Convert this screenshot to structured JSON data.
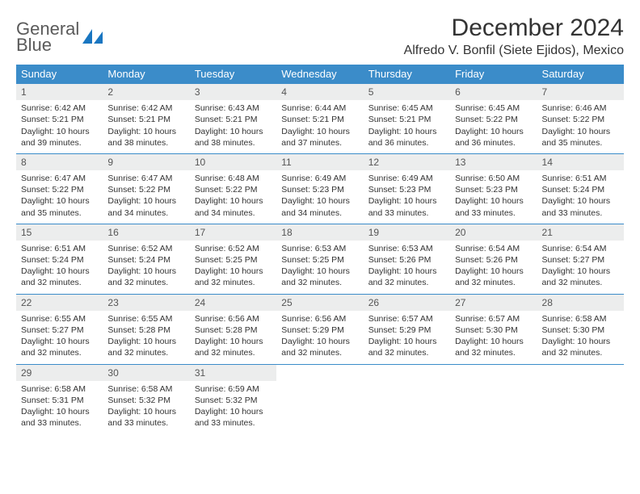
{
  "brand": {
    "name_line1": "General",
    "name_line2": "Blue",
    "accent_color": "#1976c1",
    "text_color": "#5a5a5a"
  },
  "title": "December 2024",
  "location": "Alfredo V. Bonfil (Siete Ejidos), Mexico",
  "colors": {
    "header_bg": "#3b8cc9",
    "header_text": "#ffffff",
    "daynum_bg": "#eceded",
    "row_border": "#3b8cc9",
    "body_text": "#333333",
    "page_bg": "#ffffff"
  },
  "day_names": [
    "Sunday",
    "Monday",
    "Tuesday",
    "Wednesday",
    "Thursday",
    "Friday",
    "Saturday"
  ],
  "weeks": [
    [
      {
        "n": "1",
        "sunrise": "6:42 AM",
        "sunset": "5:21 PM",
        "daylight": "10 hours and 39 minutes."
      },
      {
        "n": "2",
        "sunrise": "6:42 AM",
        "sunset": "5:21 PM",
        "daylight": "10 hours and 38 minutes."
      },
      {
        "n": "3",
        "sunrise": "6:43 AM",
        "sunset": "5:21 PM",
        "daylight": "10 hours and 38 minutes."
      },
      {
        "n": "4",
        "sunrise": "6:44 AM",
        "sunset": "5:21 PM",
        "daylight": "10 hours and 37 minutes."
      },
      {
        "n": "5",
        "sunrise": "6:45 AM",
        "sunset": "5:21 PM",
        "daylight": "10 hours and 36 minutes."
      },
      {
        "n": "6",
        "sunrise": "6:45 AM",
        "sunset": "5:22 PM",
        "daylight": "10 hours and 36 minutes."
      },
      {
        "n": "7",
        "sunrise": "6:46 AM",
        "sunset": "5:22 PM",
        "daylight": "10 hours and 35 minutes."
      }
    ],
    [
      {
        "n": "8",
        "sunrise": "6:47 AM",
        "sunset": "5:22 PM",
        "daylight": "10 hours and 35 minutes."
      },
      {
        "n": "9",
        "sunrise": "6:47 AM",
        "sunset": "5:22 PM",
        "daylight": "10 hours and 34 minutes."
      },
      {
        "n": "10",
        "sunrise": "6:48 AM",
        "sunset": "5:22 PM",
        "daylight": "10 hours and 34 minutes."
      },
      {
        "n": "11",
        "sunrise": "6:49 AM",
        "sunset": "5:23 PM",
        "daylight": "10 hours and 34 minutes."
      },
      {
        "n": "12",
        "sunrise": "6:49 AM",
        "sunset": "5:23 PM",
        "daylight": "10 hours and 33 minutes."
      },
      {
        "n": "13",
        "sunrise": "6:50 AM",
        "sunset": "5:23 PM",
        "daylight": "10 hours and 33 minutes."
      },
      {
        "n": "14",
        "sunrise": "6:51 AM",
        "sunset": "5:24 PM",
        "daylight": "10 hours and 33 minutes."
      }
    ],
    [
      {
        "n": "15",
        "sunrise": "6:51 AM",
        "sunset": "5:24 PM",
        "daylight": "10 hours and 32 minutes."
      },
      {
        "n": "16",
        "sunrise": "6:52 AM",
        "sunset": "5:24 PM",
        "daylight": "10 hours and 32 minutes."
      },
      {
        "n": "17",
        "sunrise": "6:52 AM",
        "sunset": "5:25 PM",
        "daylight": "10 hours and 32 minutes."
      },
      {
        "n": "18",
        "sunrise": "6:53 AM",
        "sunset": "5:25 PM",
        "daylight": "10 hours and 32 minutes."
      },
      {
        "n": "19",
        "sunrise": "6:53 AM",
        "sunset": "5:26 PM",
        "daylight": "10 hours and 32 minutes."
      },
      {
        "n": "20",
        "sunrise": "6:54 AM",
        "sunset": "5:26 PM",
        "daylight": "10 hours and 32 minutes."
      },
      {
        "n": "21",
        "sunrise": "6:54 AM",
        "sunset": "5:27 PM",
        "daylight": "10 hours and 32 minutes."
      }
    ],
    [
      {
        "n": "22",
        "sunrise": "6:55 AM",
        "sunset": "5:27 PM",
        "daylight": "10 hours and 32 minutes."
      },
      {
        "n": "23",
        "sunrise": "6:55 AM",
        "sunset": "5:28 PM",
        "daylight": "10 hours and 32 minutes."
      },
      {
        "n": "24",
        "sunrise": "6:56 AM",
        "sunset": "5:28 PM",
        "daylight": "10 hours and 32 minutes."
      },
      {
        "n": "25",
        "sunrise": "6:56 AM",
        "sunset": "5:29 PM",
        "daylight": "10 hours and 32 minutes."
      },
      {
        "n": "26",
        "sunrise": "6:57 AM",
        "sunset": "5:29 PM",
        "daylight": "10 hours and 32 minutes."
      },
      {
        "n": "27",
        "sunrise": "6:57 AM",
        "sunset": "5:30 PM",
        "daylight": "10 hours and 32 minutes."
      },
      {
        "n": "28",
        "sunrise": "6:58 AM",
        "sunset": "5:30 PM",
        "daylight": "10 hours and 32 minutes."
      }
    ],
    [
      {
        "n": "29",
        "sunrise": "6:58 AM",
        "sunset": "5:31 PM",
        "daylight": "10 hours and 33 minutes."
      },
      {
        "n": "30",
        "sunrise": "6:58 AM",
        "sunset": "5:32 PM",
        "daylight": "10 hours and 33 minutes."
      },
      {
        "n": "31",
        "sunrise": "6:59 AM",
        "sunset": "5:32 PM",
        "daylight": "10 hours and 33 minutes."
      },
      null,
      null,
      null,
      null
    ]
  ],
  "labels": {
    "sunrise_prefix": "Sunrise: ",
    "sunset_prefix": "Sunset: ",
    "daylight_prefix": "Daylight: "
  }
}
